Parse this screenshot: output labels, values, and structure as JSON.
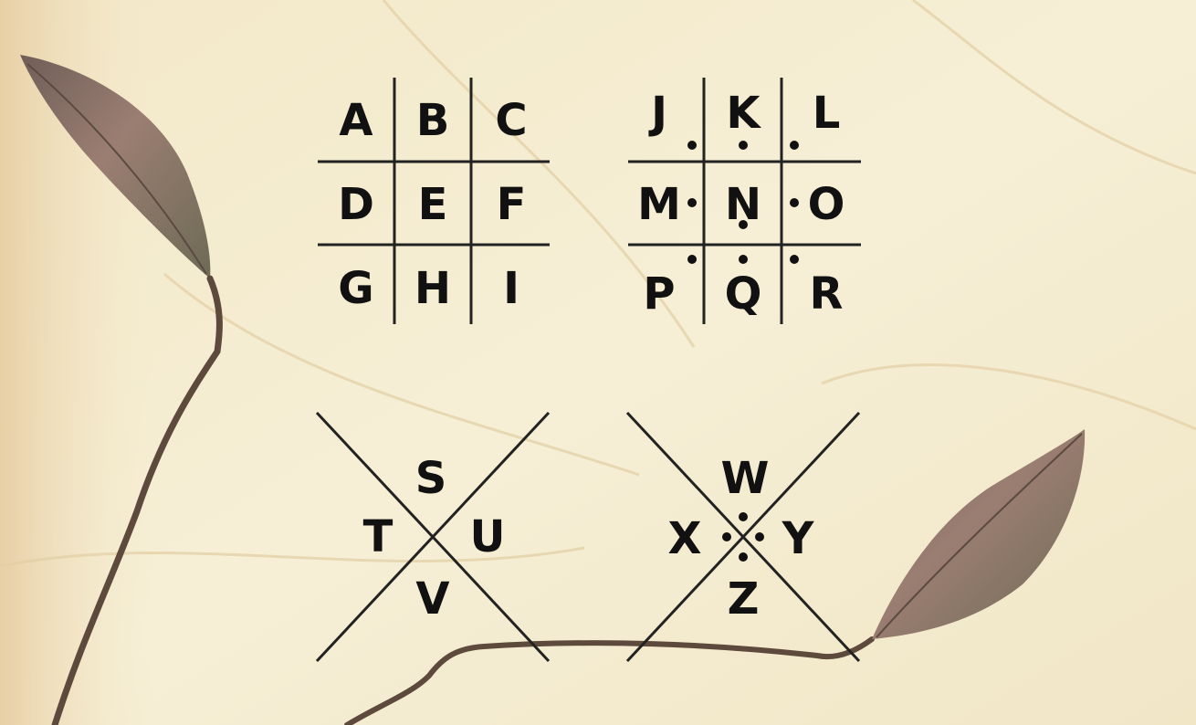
{
  "colors": {
    "ink": "#1a1a1a",
    "paper": "#f4ecd2",
    "leaf": "#8a6f63",
    "stem": "#5e4a3c"
  },
  "grid_plain": {
    "letters": [
      "A",
      "B",
      "C",
      "D",
      "E",
      "F",
      "G",
      "H",
      "I"
    ]
  },
  "grid_dotted": {
    "letters": [
      "J",
      "K",
      "L",
      "M",
      "N",
      "O",
      "P",
      "Q",
      "R"
    ]
  },
  "x_plain": {
    "letters": {
      "top": "S",
      "left": "T",
      "right": "U",
      "bottom": "V"
    }
  },
  "x_dotted": {
    "letters": {
      "top": "W",
      "left": "X",
      "right": "Y",
      "bottom": "Z"
    }
  }
}
